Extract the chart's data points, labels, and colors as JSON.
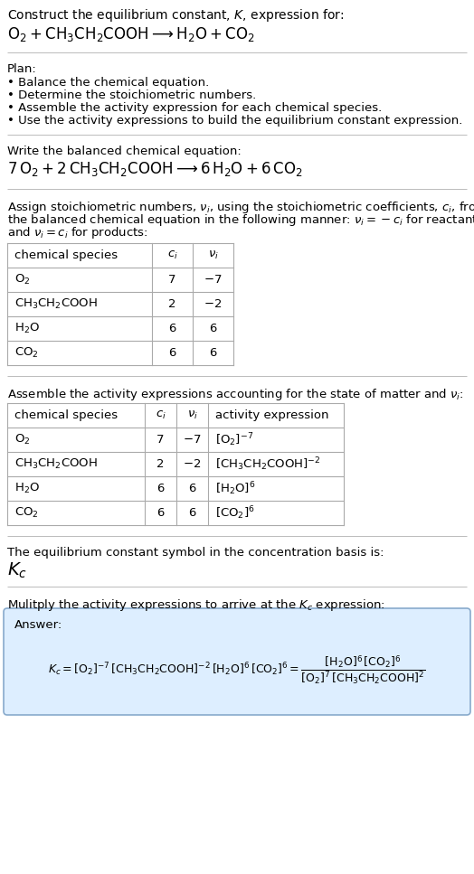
{
  "bg_color": "#ffffff",
  "text_color": "#000000",
  "title_line1": "Construct the equilibrium constant, $K$, expression for:",
  "title_line2": "$\\mathrm{O_2 + CH_3CH_2COOH \\longrightarrow H_2O + CO_2}$",
  "plan_header": "Plan:",
  "plan_items": [
    "• Balance the chemical equation.",
    "• Determine the stoichiometric numbers.",
    "• Assemble the activity expression for each chemical species.",
    "• Use the activity expressions to build the equilibrium constant expression."
  ],
  "balanced_header": "Write the balanced chemical equation:",
  "balanced_eq": "$7\\,\\mathrm{O_2} + 2\\,\\mathrm{CH_3CH_2COOH} \\longrightarrow 6\\,\\mathrm{H_2O} + 6\\,\\mathrm{CO_2}$",
  "stoich_intro_lines": [
    "Assign stoichiometric numbers, $\\nu_i$, using the stoichiometric coefficients, $c_i$, from",
    "the balanced chemical equation in the following manner: $\\nu_i = -c_i$ for reactants",
    "and $\\nu_i = c_i$ for products:"
  ],
  "table1_headers": [
    "chemical species",
    "$c_i$",
    "$\\nu_i$"
  ],
  "table1_rows": [
    [
      "$\\mathrm{O_2}$",
      "7",
      "$-7$"
    ],
    [
      "$\\mathrm{CH_3CH_2COOH}$",
      "2",
      "$-2$"
    ],
    [
      "$\\mathrm{H_2O}$",
      "6",
      "6"
    ],
    [
      "$\\mathrm{CO_2}$",
      "6",
      "6"
    ]
  ],
  "activity_intro": "Assemble the activity expressions accounting for the state of matter and $\\nu_i$:",
  "table2_headers": [
    "chemical species",
    "$c_i$",
    "$\\nu_i$",
    "activity expression"
  ],
  "table2_rows": [
    [
      "$\\mathrm{O_2}$",
      "7",
      "$-7$",
      "$[\\mathrm{O_2}]^{-7}$"
    ],
    [
      "$\\mathrm{CH_3CH_2COOH}$",
      "2",
      "$-2$",
      "$[\\mathrm{CH_3CH_2COOH}]^{-2}$"
    ],
    [
      "$\\mathrm{H_2O}$",
      "6",
      "6",
      "$[\\mathrm{H_2O}]^{6}$"
    ],
    [
      "$\\mathrm{CO_2}$",
      "6",
      "6",
      "$[\\mathrm{CO_2}]^{6}$"
    ]
  ],
  "kc_text": "The equilibrium constant symbol in the concentration basis is:",
  "kc_symbol": "$K_c$",
  "multiply_text": "Mulitply the activity expressions to arrive at the $K_c$ expression:",
  "answer_label": "Answer:",
  "answer_eq": "$K_c = [\\mathrm{O_2}]^{-7}\\,[\\mathrm{CH_3CH_2COOH}]^{-2}\\,[\\mathrm{H_2O}]^{6}\\,[\\mathrm{CO_2}]^{6} = \\dfrac{[\\mathrm{H_2O}]^{6}\\,[\\mathrm{CO_2}]^{6}}{[\\mathrm{O_2}]^{7}\\,[\\mathrm{CH_3CH_2COOH}]^{2}}$",
  "answer_box_color": "#ddeeff",
  "answer_box_border": "#88aacc",
  "table_border_color": "#aaaaaa",
  "sep_color": "#bbbbbb"
}
